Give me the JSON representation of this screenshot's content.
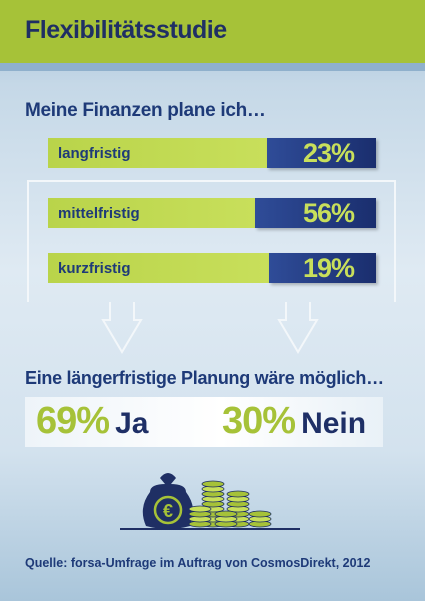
{
  "header": {
    "title": "Flexibilitätsstudie"
  },
  "chart_data": {
    "type": "bar",
    "title": "Meine Finanzen plane ich…",
    "categories": [
      "langfristig",
      "mittelfristig",
      "kurzfristig"
    ],
    "values": [
      23,
      56,
      19
    ],
    "value_labels": [
      "23%",
      "56%",
      "19%"
    ],
    "unit": "%",
    "colors": {
      "bar": "#1f3478",
      "track": "#c8df5b",
      "value_text": "#c8df5b",
      "label_text": "#1e3a78"
    }
  },
  "followup": {
    "statement": "Eine längerfristige Planung wäre möglich…",
    "answers": [
      {
        "value": 69,
        "pct": "69%",
        "label": "Ja"
      },
      {
        "value": 30,
        "pct": "30%",
        "label": "Nein"
      }
    ]
  },
  "illustration": {
    "bag_symbol": "€",
    "icons": [
      "money-bag-icon",
      "coin-stack-icon"
    ]
  },
  "source": "Quelle: forsa-Umfrage im Auftrag von CosmosDirekt, 2012"
}
